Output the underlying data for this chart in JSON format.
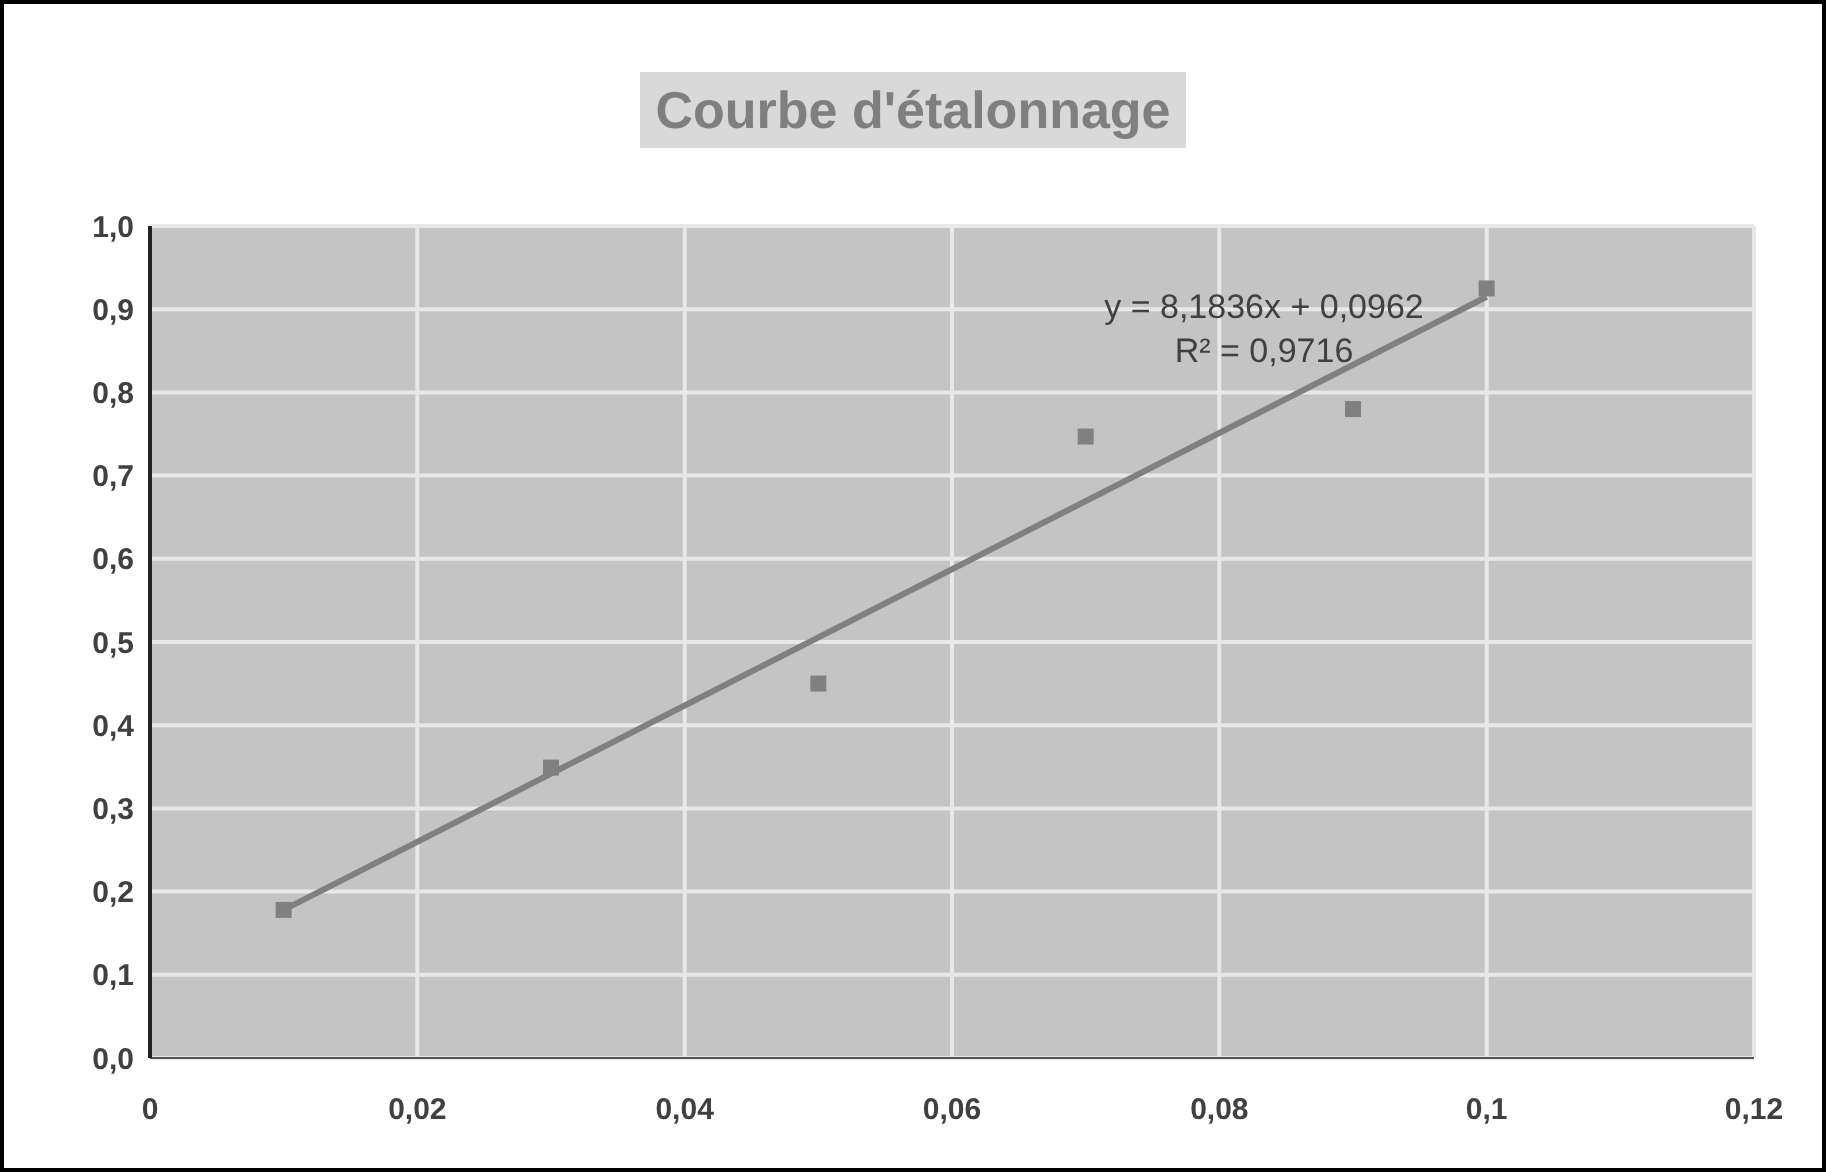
{
  "chart_data": {
    "type": "scatter",
    "title": "Courbe d'étalonnage",
    "x": [
      0.01,
      0.03,
      0.05,
      0.07,
      0.09,
      0.1
    ],
    "series": [
      {
        "color": "#808080",
        "values": [
          0.178,
          0.349,
          0.45,
          0.747,
          0.78,
          0.925
        ],
        "marker": "square"
      },
      {
        "type": "line",
        "color": "#808080",
        "x": [
          0.01,
          0.1
        ],
        "values": [
          0.178,
          0.915
        ],
        "marker": "none"
      }
    ],
    "xlim": [
      0,
      0.12
    ],
    "xticks": [
      0,
      {
        "value": 0.02,
        "label": "0,02"
      },
      {
        "value": 0.04,
        "label": "0,04"
      },
      {
        "value": 0.06,
        "label": "0,06"
      },
      {
        "value": 0.08,
        "label": "0,08"
      },
      {
        "value": 0.1,
        "label": "0,1"
      },
      {
        "value": 0.12,
        "label": "0,12"
      }
    ],
    "ylim": [
      0,
      1
    ],
    "yticks": [
      {
        "value": 0,
        "label": "0,0"
      },
      {
        "value": 0.1,
        "label": "0,1"
      },
      {
        "value": 0.2,
        "label": "0,2"
      },
      {
        "value": 0.3,
        "label": "0,3"
      },
      {
        "value": 0.4,
        "label": "0,4"
      },
      {
        "value": 0.5,
        "label": "0,5"
      },
      {
        "value": 0.6,
        "label": "0,6"
      },
      {
        "value": 0.7,
        "label": "0,7"
      },
      {
        "value": 0.8,
        "label": "0,8"
      },
      {
        "value": 0.9,
        "label": "0,9"
      },
      {
        "value": 1,
        "label": "1,0"
      }
    ],
    "grid": true,
    "annotations": [
      "y = 8,1836x + 0,0962",
      "R² = 0,9716"
    ]
  }
}
